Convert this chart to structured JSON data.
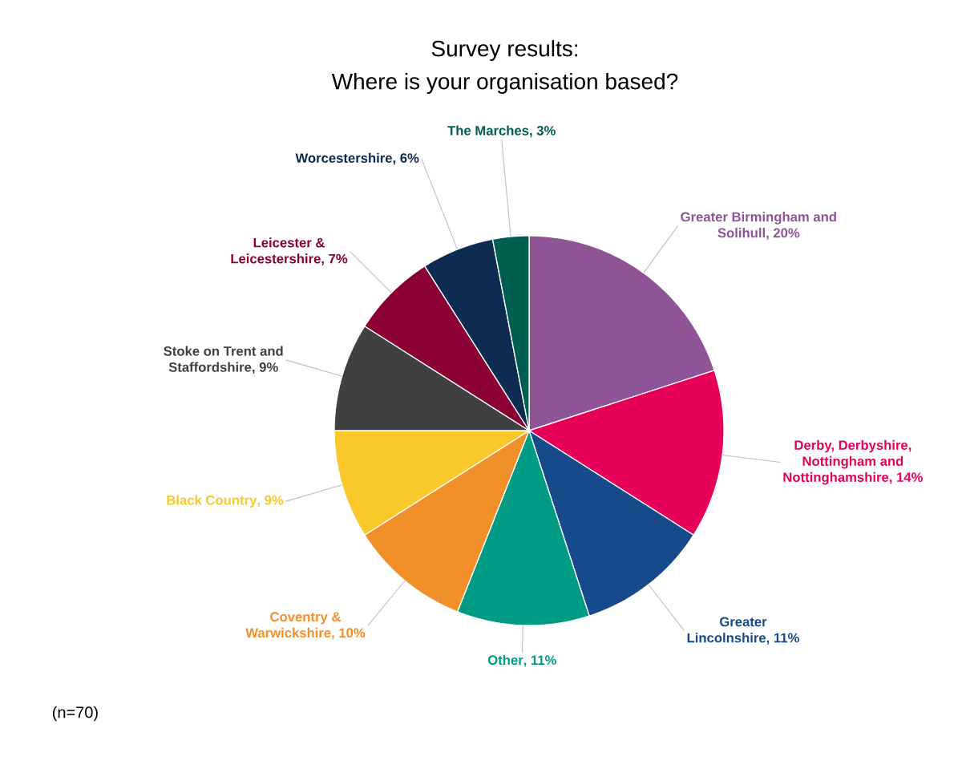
{
  "chart_data": {
    "type": "pie",
    "title": "Survey results:",
    "subtitle": "Where is your organisation based?",
    "categories": [
      "Greater Birmingham and Solihull",
      "Derby, Derbyshire, Nottingham and Nottinghamshire",
      "Greater Lincolnshire",
      "Other",
      "Coventry & Warwickshire",
      "Black Country",
      "Stoke on Trent and Staffordshire",
      "Leicester & Leicestershire",
      "Worcestershire",
      "The Marches"
    ],
    "values": [
      20,
      14,
      11,
      11,
      10,
      9,
      9,
      7,
      6,
      3
    ],
    "value_labels": [
      ", 20%",
      ", 14%",
      ", 11%",
      ", 11%",
      ", 10%",
      ", 9%",
      ", 9%",
      ", 7%",
      ", 6%",
      ", 3%"
    ],
    "colors": [
      "#8e5496",
      "#e6005a",
      "#174a8b",
      "#009b84",
      "#f19029",
      "#fbc82c",
      "#404040",
      "#8b0034",
      "#0e2b51",
      "#005e50"
    ],
    "annotations": [
      "(n=70)"
    ]
  }
}
